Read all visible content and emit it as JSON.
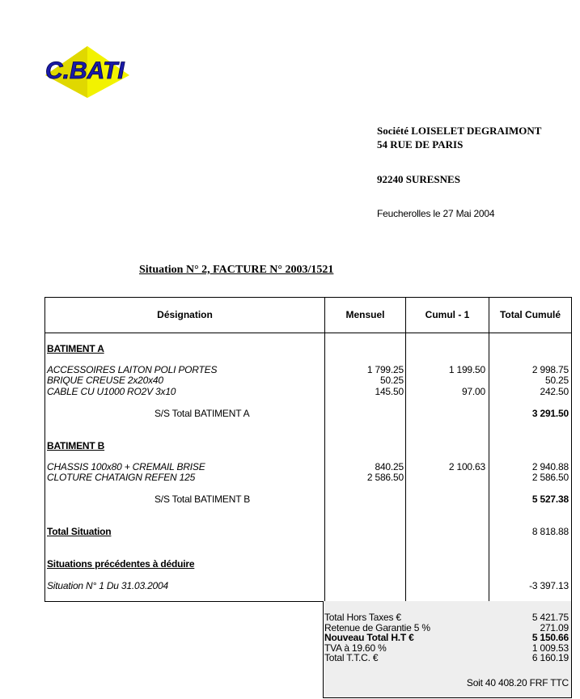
{
  "logo": {
    "text": "C.BATI"
  },
  "recipient": {
    "name": "Société LOISELET DEGRAIMONT",
    "street": "54 RUE DE PARIS",
    "city": "92240 SURESNES"
  },
  "place_date": "Feucherolles le 27 Mai 2004",
  "title": "Situation N°  2,  FACTURE N° 2003/1521",
  "columns": [
    "Désignation",
    "Mensuel",
    "Cumul - 1",
    "Total Cumulé"
  ],
  "sections": [
    {
      "heading": "BATIMENT A",
      "items": [
        {
          "label": "ACCESSOIRES LAITON POLI PORTES",
          "mensuel": "1 799.25",
          "cumul": "1 199.50",
          "total": "2 998.75"
        },
        {
          "label": "BRIQUE CREUSE  2x20x40",
          "mensuel": "50.25",
          "cumul": "",
          "total": "50.25"
        },
        {
          "label": "CABLE CU U1000 RO2V 3x10",
          "mensuel": "145.50",
          "cumul": "97.00",
          "total": "242.50"
        }
      ],
      "subtotal_label": "S/S Total BATIMENT A",
      "subtotal": "3 291.50"
    },
    {
      "heading": "BATIMENT B",
      "items": [
        {
          "label": "CHASSIS 100x80 + CREMAIL BRISE",
          "mensuel": "840.25",
          "cumul": "2 100.63",
          "total": "2 940.88"
        },
        {
          "label": "CLOTURE CHATAIGN REFEN 125",
          "mensuel": "2 586.50",
          "cumul": "",
          "total": "2 586.50"
        }
      ],
      "subtotal_label": "S/S Total BATIMENT B",
      "subtotal": "5 527.38"
    }
  ],
  "total_situation": {
    "label": "Total Situation",
    "value": "8 818.88"
  },
  "previous": {
    "heading": "Situations précédentes à déduire",
    "label": "Situation N°  1 Du 31.03.2004",
    "value": "-3 397.13"
  },
  "summary": [
    {
      "label": "Total Hors Taxes €",
      "value": "5 421.75",
      "bold": false
    },
    {
      "label": "Retenue de Garantie  5 %",
      "value": "271.09",
      "bold": false
    },
    {
      "label": "Nouveau Total H.T €",
      "value": "5 150.66",
      "bold": true
    },
    {
      "label": "TVA à 19.60 %",
      "value": "1 009.53",
      "bold": false
    },
    {
      "label": "Total T.T.C. €",
      "value": "6 160.19",
      "bold": false
    }
  ],
  "soit": "Soit 40 408.20 FRF TTC"
}
